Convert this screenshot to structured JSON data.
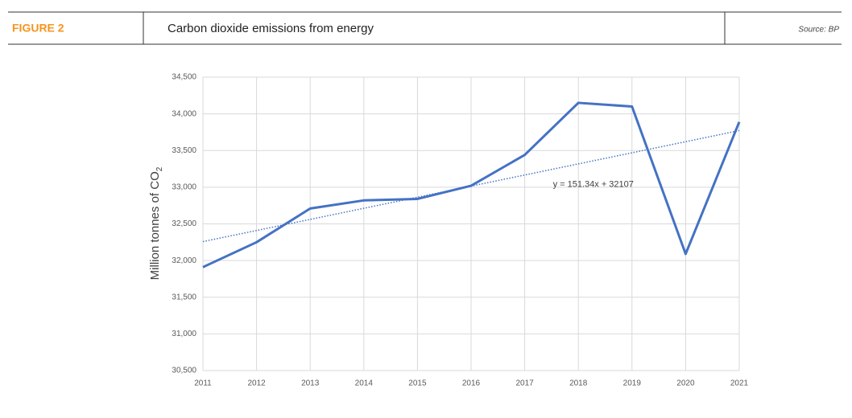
{
  "header": {
    "figure": "FIGURE 2",
    "title": "Carbon dioxide emissions from energy",
    "source": "Source: BP"
  },
  "chart_data": {
    "type": "line",
    "y_label": "Million tonnes of CO",
    "y_label_subscript": "2",
    "categories": [
      "2011",
      "2012",
      "2013",
      "2014",
      "2015",
      "2016",
      "2017",
      "2018",
      "2019",
      "2020",
      "2021"
    ],
    "series": [
      {
        "name": "CO2 emissions",
        "color": "#4472c4",
        "values": [
          31910,
          32250,
          32710,
          32820,
          32840,
          33020,
          33440,
          34150,
          34100,
          32090,
          33890
        ]
      }
    ],
    "trendline": {
      "label": "y = 151.34x + 32107",
      "slope": 151.34,
      "intercept": 32107,
      "color": "#4472c4"
    },
    "ylim": [
      30500,
      34500
    ],
    "yticks": [
      {
        "value": 30500,
        "label": "30,500"
      },
      {
        "value": 31000,
        "label": "31,000"
      },
      {
        "value": 31500,
        "label": "31,500"
      },
      {
        "value": 32000,
        "label": "32,000"
      },
      {
        "value": 32500,
        "label": "32,500"
      },
      {
        "value": 33000,
        "label": "33,000"
      },
      {
        "value": 33500,
        "label": "33,500"
      },
      {
        "value": 34000,
        "label": "34,000"
      },
      {
        "value": 34500,
        "label": "34,500"
      }
    ],
    "grid": true
  }
}
